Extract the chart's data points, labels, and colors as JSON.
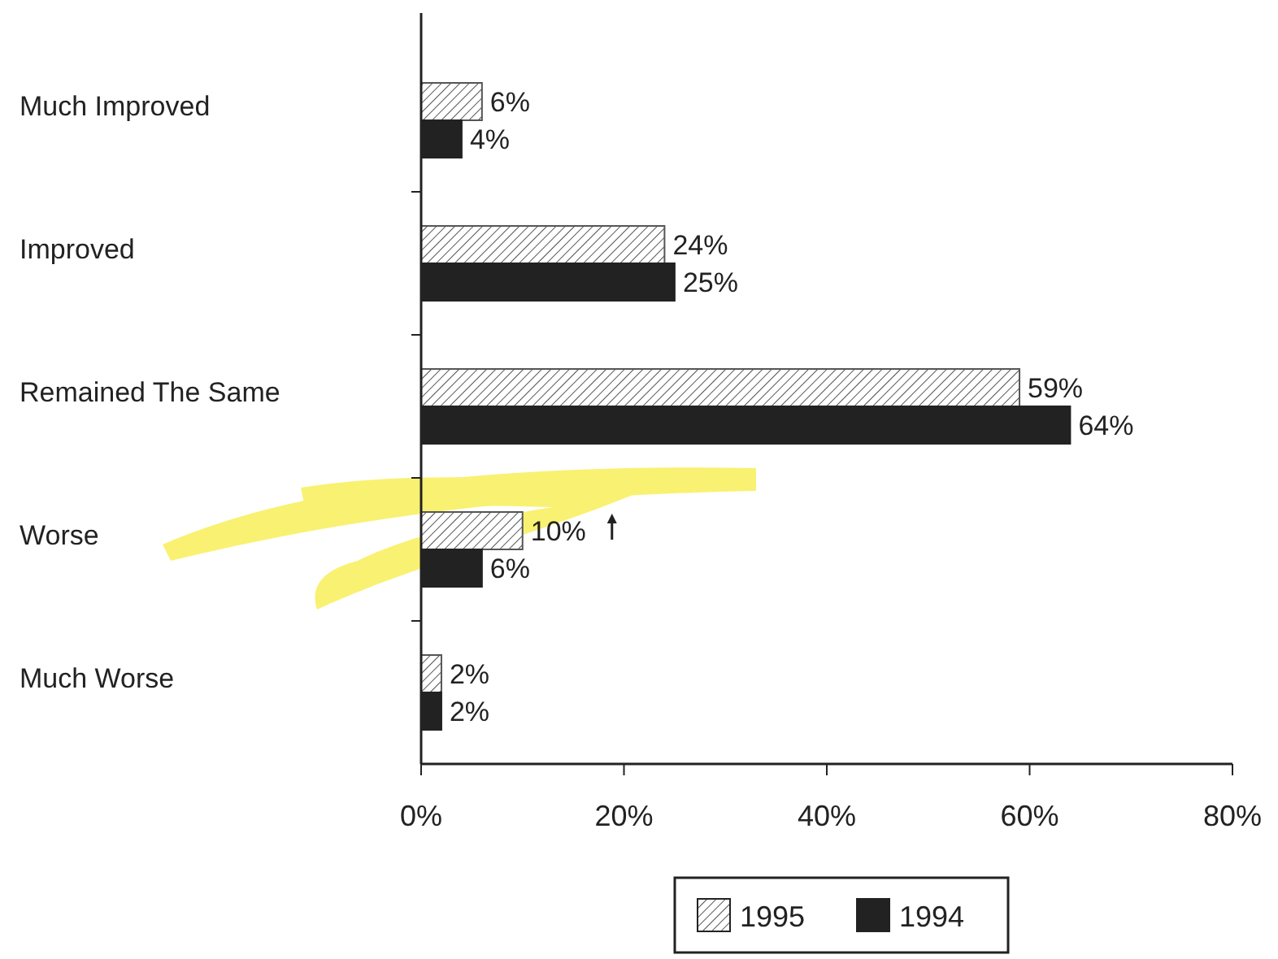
{
  "chart_data": {
    "type": "bar",
    "orientation": "horizontal",
    "categories": [
      "Much Improved",
      "Improved",
      "Remained The Same",
      "Worse",
      "Much Worse"
    ],
    "series": [
      {
        "name": "1995",
        "color": "#555555",
        "values": [
          6,
          24,
          59,
          10,
          2
        ],
        "value_labels": [
          "6%",
          "24%",
          "59%",
          "10%",
          "2%"
        ]
      },
      {
        "name": "1994",
        "color": "#222222",
        "values": [
          4,
          25,
          64,
          6,
          2
        ],
        "value_labels": [
          "4%",
          "25%",
          "64%",
          "6%",
          "2%"
        ]
      }
    ],
    "xlim": [
      0,
      80
    ],
    "xticks": [
      {
        "value": 0,
        "label": "0%"
      },
      {
        "value": 20,
        "label": "20%"
      },
      {
        "value": 40,
        "label": "40%"
      },
      {
        "value": 60,
        "label": "60%"
      },
      {
        "value": 80,
        "label": "80%"
      }
    ],
    "grid": false,
    "legend": "bottom"
  }
}
